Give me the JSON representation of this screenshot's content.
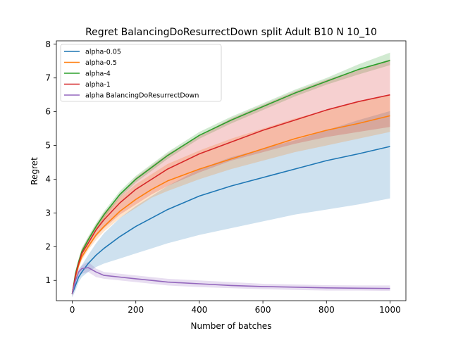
{
  "chart_data": {
    "type": "line",
    "title": "Regret BalancingDoResurrectDown split Adult B10 N 10_10",
    "xlabel": "Number of batches",
    "ylabel": "Regret",
    "xlim": [
      -50,
      1050
    ],
    "ylim": [
      0.4,
      8.1
    ],
    "xticks": [
      0,
      200,
      400,
      600,
      800,
      1000
    ],
    "yticks": [
      1,
      2,
      3,
      4,
      5,
      6,
      7,
      8
    ],
    "grid": false,
    "legend_position": "upper-left",
    "x": [
      0,
      10,
      20,
      30,
      50,
      75,
      100,
      150,
      200,
      250,
      300,
      400,
      500,
      600,
      700,
      800,
      900,
      1000
    ],
    "series": [
      {
        "name": "alpha-0.05",
        "color": "#1f77b4",
        "values": [
          0.6,
          0.85,
          1.1,
          1.25,
          1.5,
          1.75,
          1.95,
          2.3,
          2.6,
          2.85,
          3.1,
          3.5,
          3.8,
          4.05,
          4.3,
          4.55,
          4.75,
          4.97
        ],
        "lower": [
          0.5,
          0.7,
          0.95,
          1.1,
          1.25,
          1.4,
          1.5,
          1.65,
          1.8,
          1.95,
          2.1,
          2.35,
          2.55,
          2.75,
          2.95,
          3.1,
          3.25,
          3.43
        ],
        "upper": [
          0.7,
          1.0,
          1.3,
          1.45,
          1.75,
          2.1,
          2.4,
          2.85,
          3.2,
          3.5,
          3.8,
          4.3,
          4.65,
          4.9,
          5.15,
          5.45,
          5.75,
          6.02
        ]
      },
      {
        "name": "alpha-0.5",
        "color": "#ff7f0e",
        "values": [
          0.6,
          1.1,
          1.45,
          1.7,
          2.0,
          2.35,
          2.6,
          3.05,
          3.4,
          3.7,
          3.95,
          4.3,
          4.6,
          4.9,
          5.2,
          5.45,
          5.65,
          5.88
        ],
        "lower": [
          0.55,
          1.0,
          1.35,
          1.6,
          1.9,
          2.2,
          2.45,
          2.85,
          3.15,
          3.45,
          3.65,
          4.0,
          4.3,
          4.55,
          4.8,
          5.0,
          5.2,
          5.4
        ],
        "upper": [
          0.7,
          1.2,
          1.6,
          1.9,
          2.25,
          2.65,
          2.95,
          3.45,
          3.85,
          4.15,
          4.45,
          4.85,
          5.2,
          5.5,
          5.8,
          6.05,
          6.3,
          6.5
        ]
      },
      {
        "name": "alpha-4",
        "color": "#2ca02c",
        "values": [
          0.6,
          1.2,
          1.55,
          1.85,
          2.2,
          2.6,
          2.95,
          3.55,
          4.0,
          4.35,
          4.7,
          5.3,
          5.75,
          6.15,
          6.55,
          6.9,
          7.25,
          7.52
        ],
        "lower": [
          0.55,
          1.1,
          1.45,
          1.75,
          2.1,
          2.5,
          2.85,
          3.45,
          3.9,
          4.25,
          4.6,
          5.2,
          5.65,
          6.05,
          6.45,
          6.8,
          7.1,
          7.38
        ],
        "upper": [
          0.7,
          1.3,
          1.65,
          1.95,
          2.3,
          2.7,
          3.05,
          3.65,
          4.1,
          4.45,
          4.8,
          5.4,
          5.85,
          6.25,
          6.65,
          7.0,
          7.4,
          7.75
        ]
      },
      {
        "name": "alpha-1",
        "color": "#d62728",
        "values": [
          0.6,
          1.15,
          1.5,
          1.8,
          2.1,
          2.5,
          2.8,
          3.3,
          3.7,
          4.0,
          4.3,
          4.75,
          5.1,
          5.45,
          5.75,
          6.05,
          6.3,
          6.5
        ],
        "lower": [
          0.55,
          1.05,
          1.4,
          1.65,
          1.95,
          2.3,
          2.55,
          2.95,
          3.25,
          3.55,
          3.8,
          4.2,
          4.55,
          4.8,
          5.05,
          5.25,
          5.4,
          5.55
        ],
        "upper": [
          0.7,
          1.25,
          1.6,
          1.95,
          2.25,
          2.65,
          3.0,
          3.55,
          4.05,
          4.4,
          4.75,
          5.3,
          5.8,
          6.2,
          6.6,
          6.95,
          7.25,
          7.55
        ]
      },
      {
        "name": "alpha BalancingDoResurrectDown",
        "color": "#9467bd",
        "values": [
          0.6,
          1.0,
          1.25,
          1.35,
          1.38,
          1.25,
          1.15,
          1.1,
          1.05,
          1.0,
          0.95,
          0.9,
          0.85,
          0.82,
          0.8,
          0.78,
          0.77,
          0.76
        ],
        "lower": [
          0.5,
          0.9,
          1.1,
          1.2,
          1.25,
          1.1,
          1.05,
          1.0,
          0.95,
          0.9,
          0.85,
          0.8,
          0.77,
          0.74,
          0.72,
          0.7,
          0.7,
          0.69
        ],
        "upper": [
          0.7,
          1.1,
          1.35,
          1.45,
          1.55,
          1.35,
          1.25,
          1.2,
          1.15,
          1.1,
          1.05,
          1.0,
          0.95,
          0.9,
          0.88,
          0.86,
          0.85,
          0.85
        ]
      }
    ]
  }
}
